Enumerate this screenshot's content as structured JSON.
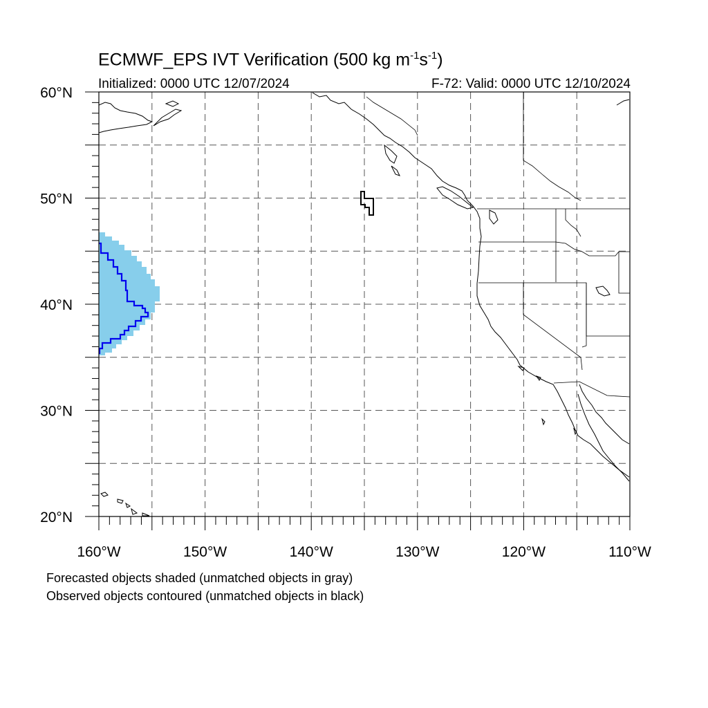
{
  "title": {
    "main": "ECMWF_EPS IVT Verification (500 kg m",
    "exp1": "-1",
    "mid": "s",
    "exp2": "-1",
    "close": ")"
  },
  "subtitle_left": "Initialized: 0000 UTC 12/07/2024",
  "subtitle_right": "F-72: Valid: 0000 UTC 12/10/2024",
  "captions": [
    "Forecasted objects shaded (unmatched objects in gray)",
    "Observed objects contoured (unmatched objects in black)"
  ],
  "map": {
    "lon_range": [
      -160,
      -110
    ],
    "lat_range": [
      20,
      60
    ],
    "lon_labels": [
      "160°W",
      "150°W",
      "140°W",
      "130°W",
      "120°W",
      "110°W"
    ],
    "lat_labels": [
      "20°N",
      "30°N",
      "40°N",
      "50°N",
      "60°N"
    ],
    "colors": {
      "forecast_shading": "#87ceeb",
      "matched_observed_contour": "#0000ee",
      "unmatched_observed_contour": "#000000",
      "coastline": "#000000",
      "gridline": "#555555"
    }
  }
}
